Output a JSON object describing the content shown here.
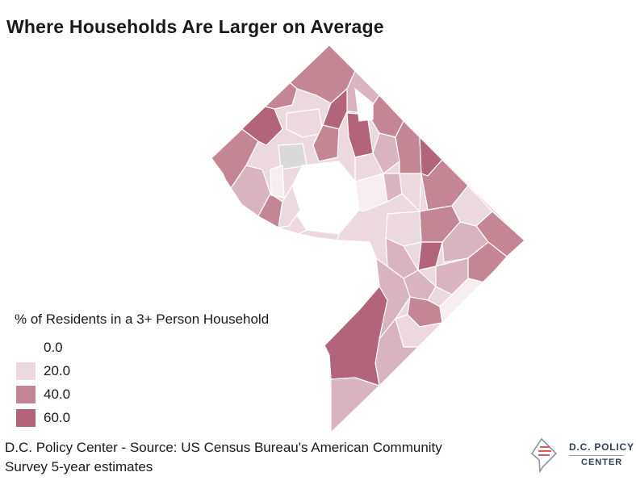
{
  "title": "Where Households Are Larger on Average",
  "legend": {
    "title": "% of Residents in a 3+ Person Household",
    "items": [
      {
        "label": "0.0",
        "color": "#ffffff"
      },
      {
        "label": "20.0",
        "color": "#ecd9df"
      },
      {
        "label": "40.0",
        "color": "#c48595"
      },
      {
        "label": "60.0",
        "color": "#b2647a"
      }
    ]
  },
  "source_line1": "D.C. Policy Center - Source: US Census Bureau's American Community",
  "source_line2": "Survey 5-year estimates",
  "logo": {
    "line1": "D.C. POLICY",
    "line2": "CENTER"
  },
  "colors": {
    "zero": "#ffffff",
    "very_light": "#f7eef1",
    "light": "#ecd9df",
    "mid": "#d9b3bf",
    "dark": "#c48595",
    "darkest": "#b2647a",
    "no_data": "#d9d9d9",
    "accent": "#e05a5a"
  }
}
